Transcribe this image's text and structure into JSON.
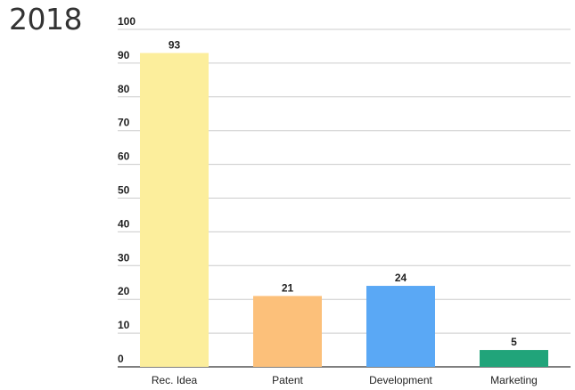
{
  "chart_data": {
    "type": "bar",
    "title": "2018",
    "categories": [
      "Rec. Idea",
      "Patent",
      "Development",
      "Marketing"
    ],
    "values": [
      93,
      21,
      24,
      5
    ],
    "colors": [
      "#fcee9c",
      "#fcc07a",
      "#5aa8f5",
      "#21a47a"
    ],
    "ylim": [
      0,
      100
    ],
    "yticks": [
      0,
      10,
      20,
      30,
      40,
      50,
      60,
      70,
      80,
      90,
      100
    ],
    "grid": true,
    "legend": "none",
    "xlabel": "",
    "ylabel": ""
  }
}
